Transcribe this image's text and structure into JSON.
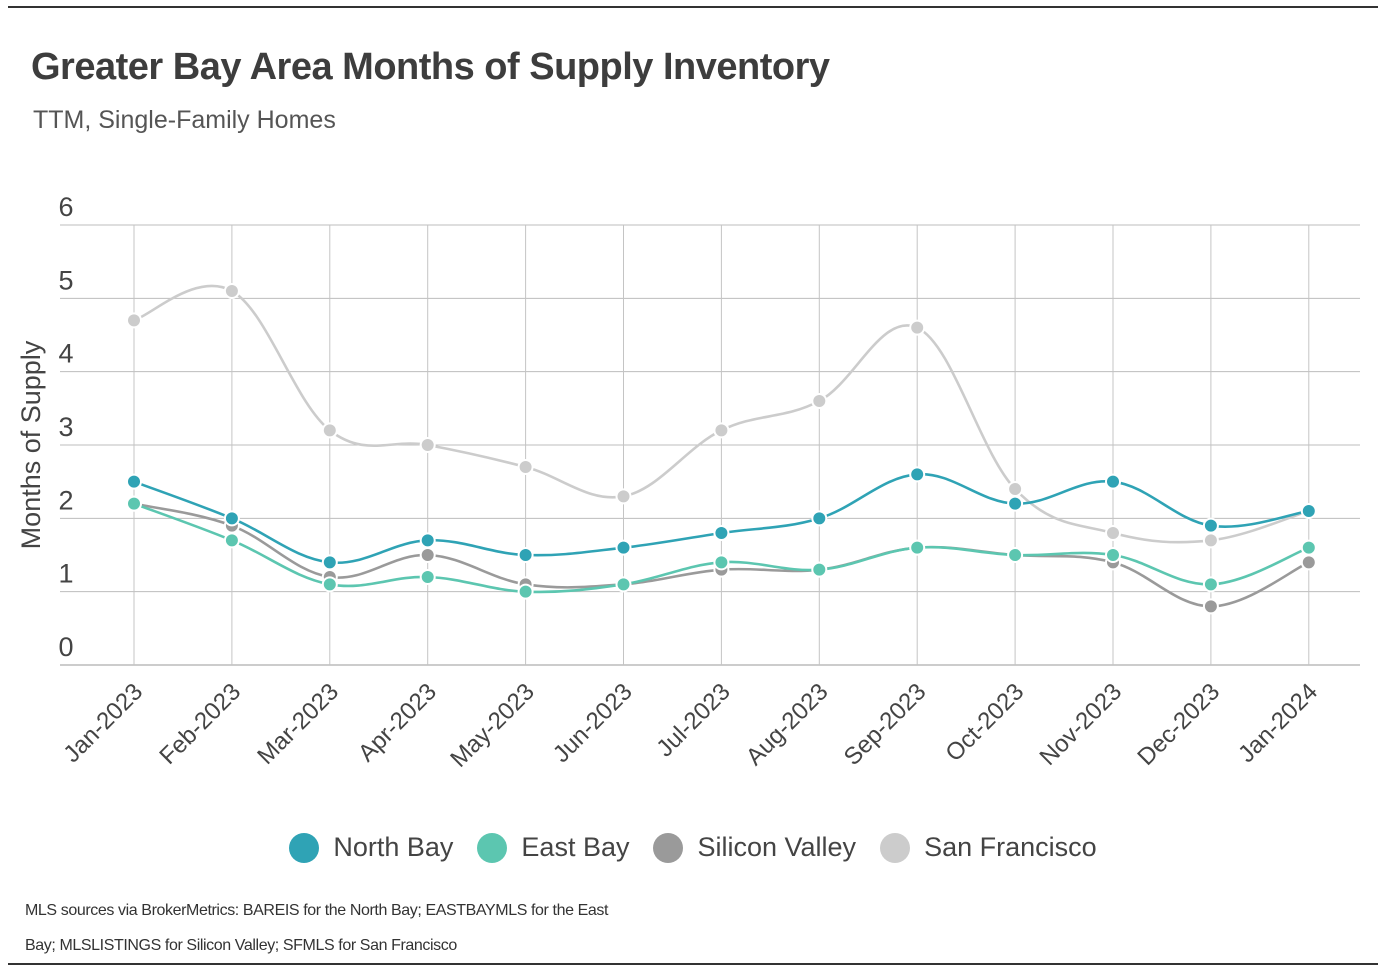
{
  "title": "Greater Bay Area Months of Supply Inventory",
  "subtitle": "TTM, Single-Family Homes",
  "source": "MLS sources via BrokerMetrics: BAREIS for the North Bay; EASTBAYMLS for the East Bay; MLSLISTINGS for Silicon Valley; SFMLS for San Francisco",
  "chart_data": {
    "type": "line",
    "title": "Greater Bay Area Months of Supply Inventory",
    "subtitle": "TTM, Single-Family Homes",
    "xlabel": "",
    "ylabel": "Months of Supply",
    "ylim": [
      0,
      6
    ],
    "yticks": [
      "0",
      "1",
      "2",
      "3",
      "4",
      "5",
      "6"
    ],
    "grid": true,
    "legend_position": "bottom",
    "categories": [
      "Jan-2023",
      "Feb-2023",
      "Mar-2023",
      "Apr-2023",
      "May-2023",
      "Jun-2023",
      "Jul-2023",
      "Aug-2023",
      "Sep-2023",
      "Oct-2023",
      "Nov-2023",
      "Dec-2023",
      "Jan-2024"
    ],
    "series": [
      {
        "name": "North Bay",
        "color": "#2fa3b5",
        "values": [
          2.5,
          2.0,
          1.4,
          1.7,
          1.5,
          1.6,
          1.8,
          2.0,
          2.6,
          2.2,
          2.5,
          1.9,
          2.1
        ]
      },
      {
        "name": "East Bay",
        "color": "#5cc6b0",
        "values": [
          2.2,
          1.7,
          1.1,
          1.2,
          1.0,
          1.1,
          1.4,
          1.3,
          1.6,
          1.5,
          1.5,
          1.1,
          1.6
        ]
      },
      {
        "name": "Silicon Valley",
        "color": "#9a9a9a",
        "values": [
          2.2,
          1.9,
          1.2,
          1.5,
          1.1,
          1.1,
          1.3,
          1.3,
          1.6,
          1.5,
          1.4,
          0.8,
          1.4
        ]
      },
      {
        "name": "San Francisco",
        "color": "#cccccc",
        "values": [
          4.7,
          5.1,
          3.2,
          3.0,
          2.7,
          2.3,
          3.2,
          3.6,
          4.6,
          2.4,
          1.8,
          1.7,
          2.1
        ]
      }
    ]
  }
}
